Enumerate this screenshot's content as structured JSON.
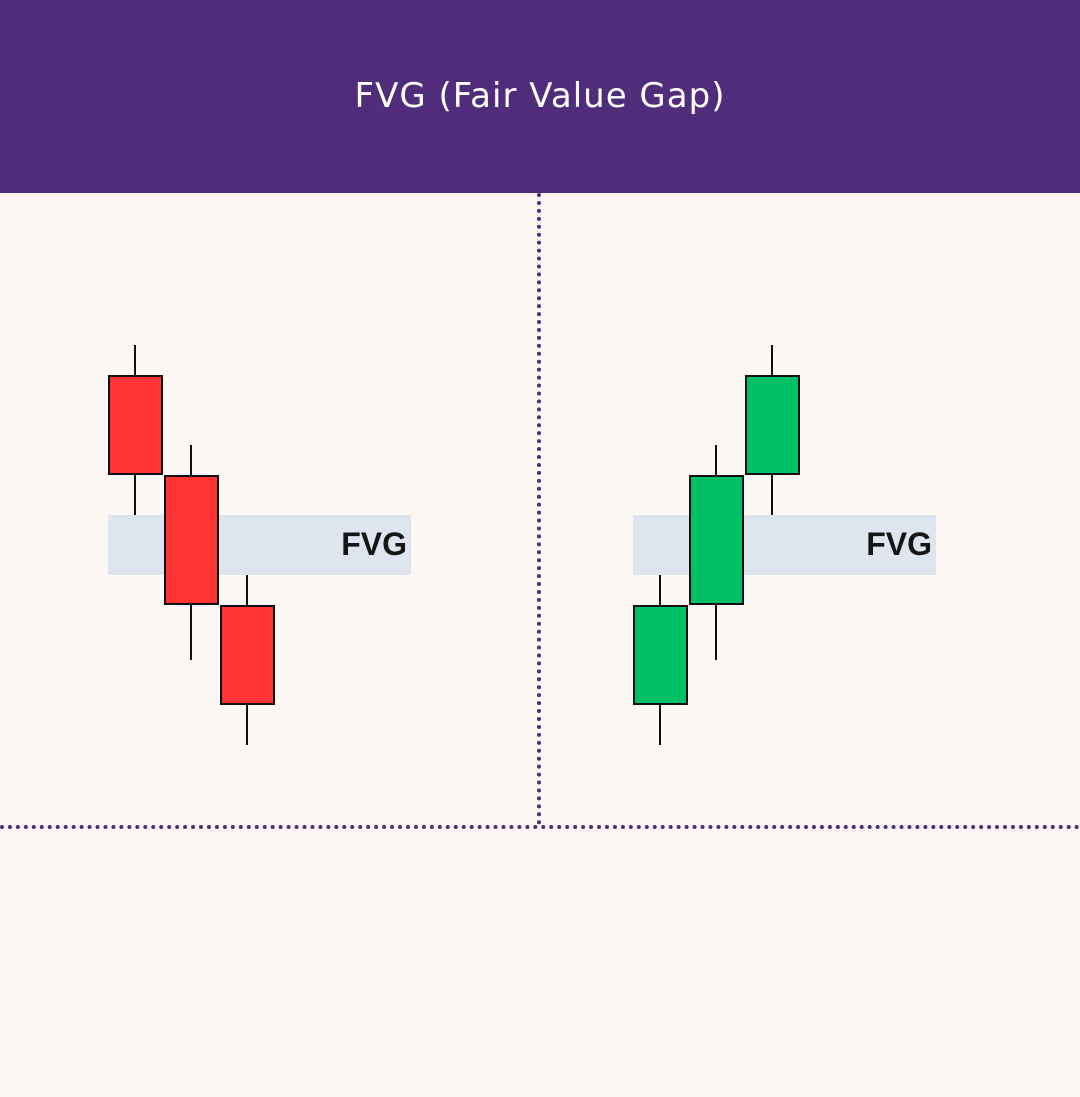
{
  "header": {
    "title": "FVG (Fair Value Gap)"
  },
  "colors": {
    "header_bg": "#4f2d7a",
    "page_bg": "#fdf8f4",
    "bearish": "#ff3333",
    "bullish": "#00c066",
    "fvg_zone": "#dfe5ef"
  },
  "panels": [
    {
      "name": "bearish",
      "fvg_label": "FVG",
      "candles": [
        {
          "direction": "down",
          "open": 6.45,
          "close": 5.45,
          "high": 6.75,
          "low": 5.05
        },
        {
          "direction": "down",
          "open": 5.45,
          "close": 4.15,
          "high": 5.75,
          "low": 3.6
        },
        {
          "direction": "down",
          "open": 4.15,
          "close": 3.15,
          "high": 4.45,
          "low": 2.75
        }
      ],
      "gap": {
        "top": 5.05,
        "bottom": 4.45
      }
    },
    {
      "name": "bullish",
      "fvg_label": "FVG",
      "candles": [
        {
          "direction": "up",
          "open": 3.15,
          "close": 4.15,
          "high": 4.45,
          "low": 2.75
        },
        {
          "direction": "up",
          "open": 4.15,
          "close": 5.45,
          "high": 5.75,
          "low": 3.6
        },
        {
          "direction": "up",
          "open": 5.45,
          "close": 6.45,
          "high": 6.75,
          "low": 5.05
        }
      ],
      "gap": {
        "top": 5.05,
        "bottom": 4.45
      }
    }
  ]
}
